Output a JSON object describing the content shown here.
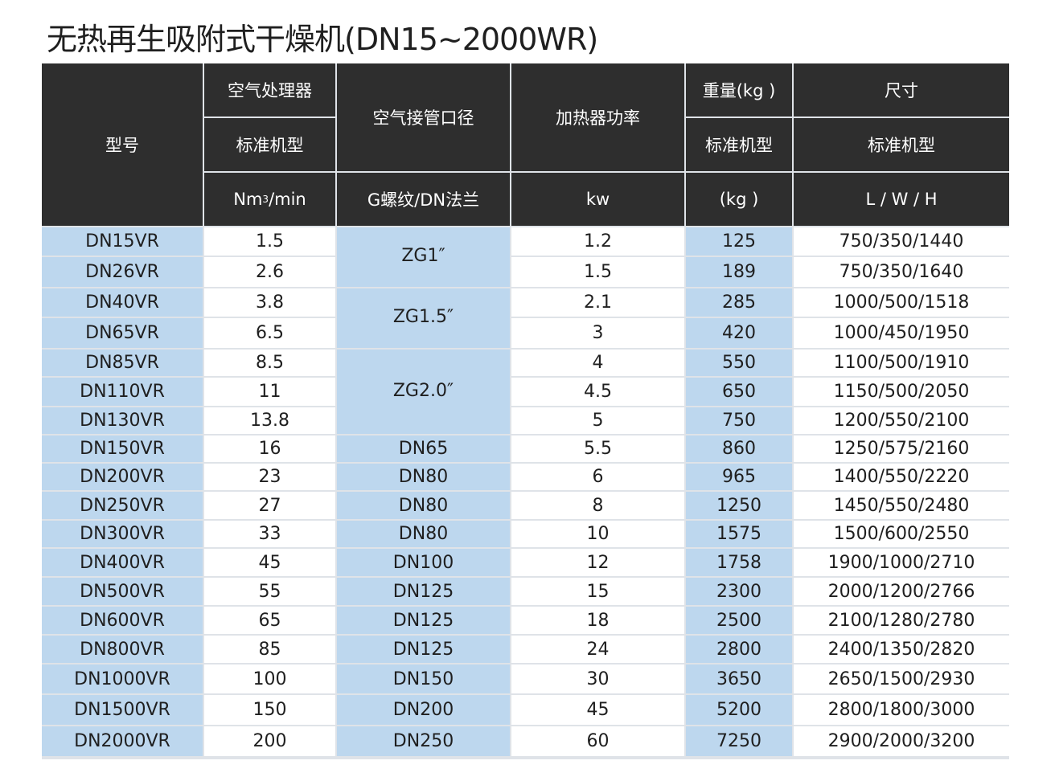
{
  "title": "无热再生吸附式干燥机(DN15~2000WR)",
  "header": {
    "model": "型号",
    "air_processor": "空气处理器",
    "air_processor_sub": "标准机型",
    "air_processor_unit_base": "Nm",
    "air_processor_unit_sup": "3",
    "air_processor_unit_tail": "/min",
    "pipe": "空气接管口径",
    "pipe_unit": "G螺纹/DN法兰",
    "heater": "加热器功率",
    "heater_unit": "kw",
    "weight": "重量(kg )",
    "weight_sub": "标准机型",
    "weight_unit": "(kg )",
    "size": "尺寸",
    "size_sub": "标准机型",
    "size_unit": "L / W / H"
  },
  "rows": [
    {
      "model": "DN15VR",
      "air": "1.5",
      "heater": "1.2",
      "weight": "125",
      "size": "750/350/1440"
    },
    {
      "model": "DN26VR",
      "air": "2.6",
      "heater": "1.5",
      "weight": "189",
      "size": "750/350/1640"
    },
    {
      "model": "DN40VR",
      "air": "3.8",
      "heater": "2.1",
      "weight": "285",
      "size": "1000/500/1518"
    },
    {
      "model": "DN65VR",
      "air": "6.5",
      "heater": "3",
      "weight": "420",
      "size": "1000/450/1950"
    },
    {
      "model": "DN85VR",
      "air": "8.5",
      "heater": "4",
      "weight": "550",
      "size": "1100/500/1910"
    },
    {
      "model": "DN110VR",
      "air": "11",
      "heater": "4.5",
      "weight": "650",
      "size": "1150/500/2050"
    },
    {
      "model": "DN130VR",
      "air": "13.8",
      "heater": "5",
      "weight": "750",
      "size": "1200/550/2100"
    },
    {
      "model": "DN150VR",
      "air": "16",
      "heater": "5.5",
      "weight": "860",
      "size": "1250/575/2160"
    },
    {
      "model": "DN200VR",
      "air": "23",
      "heater": "6",
      "weight": "965",
      "size": "1400/550/2220"
    },
    {
      "model": "DN250VR",
      "air": "27",
      "heater": "8",
      "weight": "1250",
      "size": "1450/550/2480"
    },
    {
      "model": "DN300VR",
      "air": "33",
      "heater": "10",
      "weight": "1575",
      "size": "1500/600/2550"
    },
    {
      "model": "DN400VR",
      "air": "45",
      "heater": "12",
      "weight": "1758",
      "size": "1900/1000/2710"
    },
    {
      "model": "DN500VR",
      "air": "55",
      "heater": "15",
      "weight": "2300",
      "size": "2000/1200/2766"
    },
    {
      "model": "DN600VR",
      "air": "65",
      "heater": "18",
      "weight": "2500",
      "size": "2100/1280/2780"
    },
    {
      "model": "DN800VR",
      "air": "85",
      "heater": "24",
      "weight": "2800",
      "size": "2400/1350/2820"
    },
    {
      "model": "DN1000VR",
      "air": "100",
      "heater": "30",
      "weight": "3650",
      "size": "2650/1500/2930"
    },
    {
      "model": "DN1500VR",
      "air": "150",
      "heater": "45",
      "weight": "5200",
      "size": "2800/1800/3000"
    },
    {
      "model": "DN2000VR",
      "air": "200",
      "heater": "60",
      "weight": "7250",
      "size": "2900/2000/3200"
    }
  ],
  "pipe_groups": [
    {
      "label": "ZG1″",
      "rows": 2
    },
    {
      "label": "ZG1.5″",
      "rows": 2
    },
    {
      "label": "ZG2.0″",
      "rows": 3
    },
    {
      "label": "DN65",
      "rows": 1
    },
    {
      "label": "DN80",
      "rows": 1
    },
    {
      "label": "DN80",
      "rows": 1
    },
    {
      "label": "DN80",
      "rows": 1
    },
    {
      "label": "DN100",
      "rows": 1
    },
    {
      "label": "DN125",
      "rows": 1
    },
    {
      "label": "DN125",
      "rows": 1
    },
    {
      "label": "DN125",
      "rows": 1
    },
    {
      "label": "DN150",
      "rows": 1
    },
    {
      "label": "DN200",
      "rows": 1
    },
    {
      "label": "DN250",
      "rows": 1
    }
  ],
  "colors": {
    "header_bg": "#2e2e2e",
    "model_bg": "#bdd7ee",
    "pipe_bg": "#bdd7ee",
    "weight_bg": "#bdd7ee",
    "cell_bg": "#ffffff"
  }
}
